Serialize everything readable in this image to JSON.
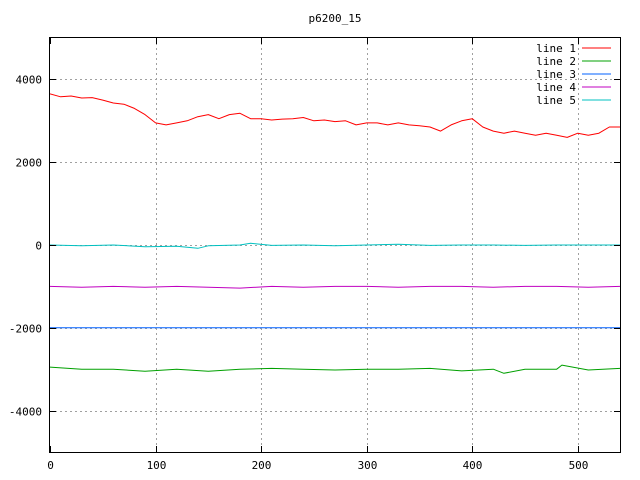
{
  "chart_data": {
    "type": "line",
    "title": "p6200_15",
    "xlim": [
      0,
      540
    ],
    "ylim": [
      -5000,
      5000
    ],
    "xticks": [
      0,
      100,
      200,
      300,
      400,
      500
    ],
    "yticks": [
      -4000,
      -2000,
      0,
      2000,
      4000
    ],
    "grid": true,
    "legend_position": "top-right",
    "series": [
      {
        "name": "line 1",
        "color": "#ff0000",
        "x": [
          0,
          10,
          20,
          30,
          40,
          50,
          60,
          70,
          80,
          90,
          100,
          110,
          120,
          130,
          140,
          150,
          160,
          170,
          180,
          190,
          200,
          210,
          220,
          230,
          240,
          250,
          260,
          270,
          280,
          290,
          300,
          310,
          320,
          330,
          340,
          350,
          360,
          370,
          380,
          390,
          400,
          410,
          420,
          430,
          440,
          450,
          460,
          470,
          480,
          490,
          500,
          510,
          520,
          530,
          540
        ],
        "y": [
          3650,
          3580,
          3600,
          3550,
          3560,
          3500,
          3430,
          3400,
          3300,
          3150,
          2950,
          2900,
          2950,
          3000,
          3100,
          3150,
          3050,
          3150,
          3180,
          3050,
          3050,
          3020,
          3040,
          3050,
          3080,
          3000,
          3020,
          2980,
          3000,
          2900,
          2950,
          2950,
          2900,
          2950,
          2900,
          2880,
          2850,
          2750,
          2900,
          3000,
          3050,
          2850,
          2750,
          2700,
          2750,
          2700,
          2650,
          2700,
          2650,
          2600,
          2700,
          2650,
          2700,
          2850,
          2850
        ]
      },
      {
        "name": "line 2",
        "color": "#00a000",
        "x": [
          0,
          30,
          60,
          90,
          120,
          150,
          180,
          210,
          240,
          270,
          300,
          330,
          360,
          390,
          420,
          430,
          450,
          480,
          485,
          510,
          540
        ],
        "y": [
          -2950,
          -3000,
          -3000,
          -3050,
          -3000,
          -3050,
          -3000,
          -2980,
          -3000,
          -3020,
          -3000,
          -3000,
          -2980,
          -3040,
          -3000,
          -3100,
          -3000,
          -3000,
          -2900,
          -3020,
          -2980
        ]
      },
      {
        "name": "line 3",
        "color": "#0060ff",
        "x": [
          0,
          540
        ],
        "y": [
          -2000,
          -2000
        ]
      },
      {
        "name": "line 4",
        "color": "#c000c0",
        "x": [
          0,
          30,
          60,
          90,
          120,
          150,
          180,
          210,
          240,
          270,
          300,
          330,
          360,
          390,
          420,
          450,
          480,
          510,
          540
        ],
        "y": [
          -1000,
          -1020,
          -1000,
          -1020,
          -1000,
          -1020,
          -1040,
          -1000,
          -1020,
          -1000,
          -1000,
          -1020,
          -1000,
          -1000,
          -1020,
          -1000,
          -1000,
          -1020,
          -1000
        ]
      },
      {
        "name": "line 5",
        "color": "#00c0c0",
        "x": [
          0,
          30,
          60,
          90,
          120,
          140,
          150,
          180,
          190,
          210,
          240,
          270,
          300,
          330,
          360,
          390,
          420,
          450,
          480,
          510,
          540
        ],
        "y": [
          0,
          -20,
          0,
          -40,
          -30,
          -80,
          -20,
          0,
          40,
          -10,
          0,
          -20,
          0,
          20,
          -10,
          0,
          0,
          -10,
          0,
          0,
          0
        ]
      }
    ]
  }
}
